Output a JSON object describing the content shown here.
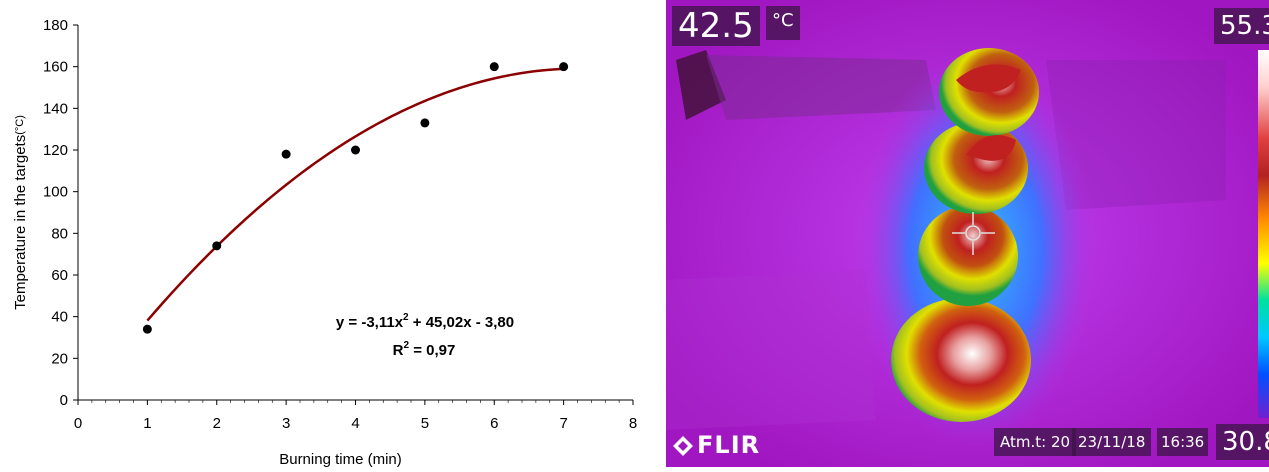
{
  "chart_data": {
    "type": "scatter",
    "xlabel": "Burning time (min)",
    "ylabel": "Temperature in the targets",
    "ylabel_unit": "(°C)",
    "xlim": [
      0,
      8
    ],
    "ylim": [
      0,
      180
    ],
    "x_ticks": [
      0,
      1,
      2,
      3,
      4,
      5,
      6,
      7,
      8
    ],
    "y_ticks": [
      0,
      20,
      40,
      60,
      80,
      100,
      120,
      140,
      160,
      180
    ],
    "grid": false,
    "points": {
      "x": [
        1,
        2,
        3,
        4,
        5,
        6,
        7
      ],
      "y": [
        34,
        74,
        118,
        120,
        133,
        160,
        160
      ]
    },
    "trendline": {
      "type": "polynomial",
      "coefficients": [
        -3.11,
        45.02,
        -3.8
      ],
      "x_range": [
        1,
        7
      ],
      "color": "#8b0000"
    },
    "annotation": {
      "equation_prefix": "y = -3,11x",
      "equation_power": "2",
      "equation_suffix": " + 45,02x - 3,80",
      "r2_prefix": "R",
      "r2_power": "2",
      "r2_suffix": " = 0,97"
    },
    "point_color": "#000000",
    "axis_color": "#000000"
  },
  "thermal": {
    "spot_temp": "42.5",
    "unit": "°C",
    "scale_max": "55.3",
    "scale_min": "30.8",
    "atm": "Atm.t: 20",
    "date": "23/11/18",
    "time": "16:36",
    "brand": "FLIR",
    "background_color": "#a416c8"
  }
}
